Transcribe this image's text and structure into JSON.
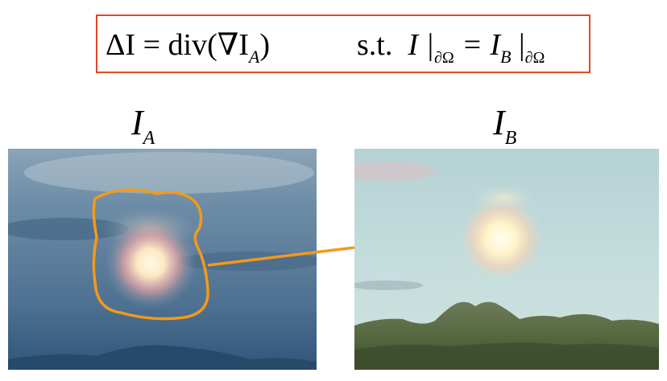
{
  "equation": {
    "lhs": "ΔI = div(∇I",
    "lhs_sub": "A",
    "lhs_close": ")",
    "st": "s.t.",
    "rhs_I": "I |",
    "rhs_sub1": "∂Ω",
    "rhs_eq": " = I",
    "rhs_sub2": "B",
    "rhs_bar": " |",
    "rhs_sub3": "∂Ω"
  },
  "labels": {
    "left_main": "I",
    "left_sub": "A",
    "right_main": "I",
    "right_sub": "B"
  },
  "colors": {
    "box_border": "#e0482a",
    "region_outline": "#f29a1a"
  }
}
